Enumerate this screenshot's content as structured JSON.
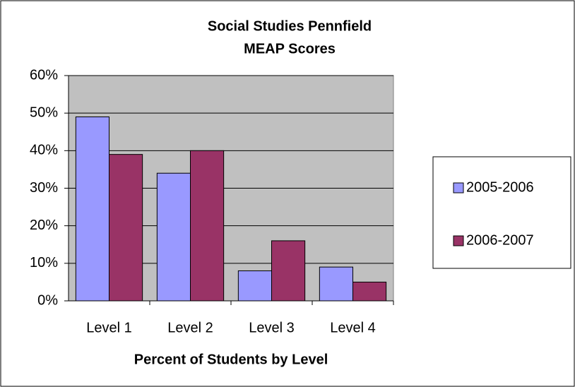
{
  "chart_data": {
    "type": "bar",
    "title": [
      "Social Studies Pennfield",
      "MEAP Scores"
    ],
    "x_label": "Percent of Students by Level",
    "categories": [
      "Level 1",
      "Level 2",
      "Level 3",
      "Level 4"
    ],
    "series": [
      {
        "name": "2005-2006",
        "color": "#9999ff",
        "values": [
          49,
          34,
          8,
          9
        ]
      },
      {
        "name": "2006-2007",
        "color": "#993366",
        "values": [
          39,
          40,
          16,
          5
        ]
      }
    ],
    "ylim": [
      0,
      60
    ],
    "yticks": [
      {
        "value": 0,
        "label": "0%"
      },
      {
        "value": 10,
        "label": "10%"
      },
      {
        "value": 20,
        "label": "20%"
      },
      {
        "value": 30,
        "label": "30%"
      },
      {
        "value": 40,
        "label": "40%"
      },
      {
        "value": 50,
        "label": "50%"
      },
      {
        "value": 60,
        "label": "60%"
      }
    ],
    "grid": true,
    "legend": "right",
    "plot_background": "#c0c0c0"
  }
}
